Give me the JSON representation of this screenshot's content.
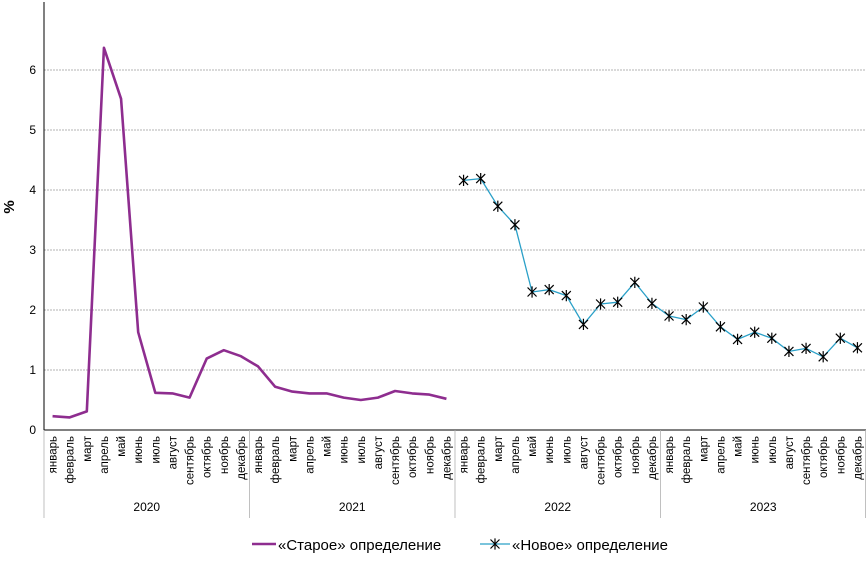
{
  "chart_data": {
    "type": "line",
    "ylabel": "%",
    "ylim": [
      0,
      7
    ],
    "yticks": [
      0,
      1,
      2,
      3,
      4,
      5,
      6
    ],
    "grid": "horizontal",
    "legend_position": "bottom",
    "months": [
      "январь",
      "февраль",
      "март",
      "апрель",
      "май",
      "июнь",
      "июль",
      "август",
      "сентябрь",
      "октябрь",
      "ноябрь",
      "декабрь"
    ],
    "years": [
      "2020",
      "2021",
      "2022",
      "2023"
    ],
    "series": [
      {
        "name": "«Старое» определение",
        "color": "#8e2d8f",
        "marker": "none",
        "start_index": 0,
        "values": [
          0.23,
          0.21,
          0.31,
          6.37,
          5.52,
          1.63,
          0.62,
          0.61,
          0.54,
          1.19,
          1.33,
          1.23,
          1.06,
          0.72,
          0.64,
          0.61,
          0.61,
          0.54,
          0.5,
          0.54,
          0.65,
          0.61,
          0.59,
          0.52
        ]
      },
      {
        "name": "«Новое» определение",
        "color": "#2aa0c8",
        "marker": "asterisk",
        "start_index": 24,
        "values": [
          4.16,
          4.19,
          3.73,
          3.42,
          2.3,
          2.34,
          2.24,
          1.76,
          2.1,
          2.13,
          2.46,
          2.11,
          1.9,
          1.84,
          2.05,
          1.72,
          1.51,
          1.63,
          1.53,
          1.31,
          1.36,
          1.22,
          1.53,
          1.37
        ]
      }
    ]
  }
}
